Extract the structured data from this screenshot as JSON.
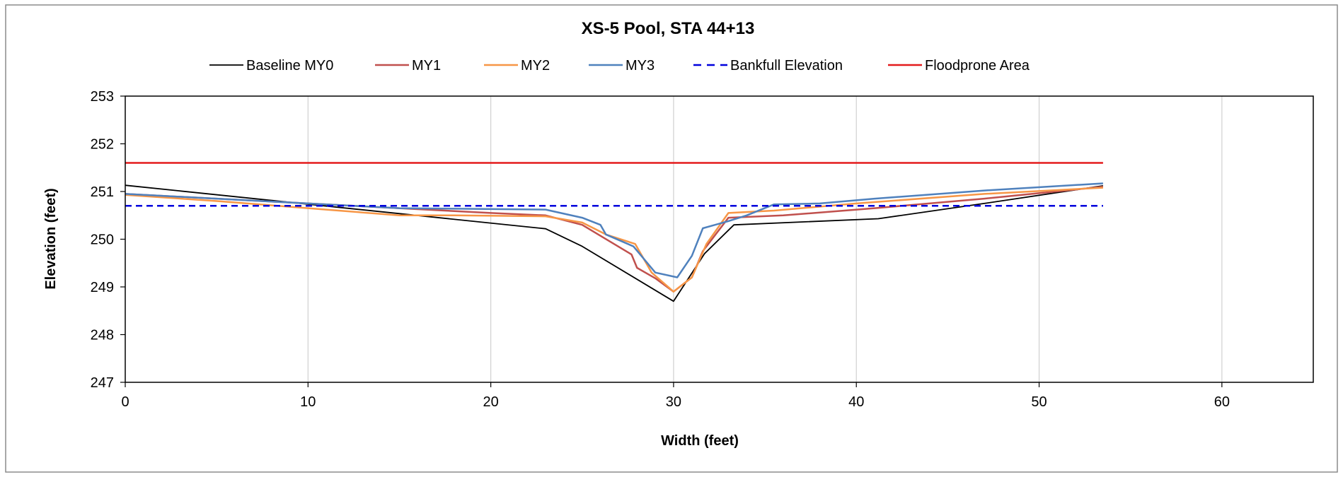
{
  "chart_data": {
    "type": "line",
    "title": "XS-5 Pool, STA 44+13",
    "xlabel": "Width (feet)",
    "ylabel": "Elevation (feet)",
    "xlim": [
      0,
      65
    ],
    "ylim": [
      247,
      253
    ],
    "xticks": [
      0,
      10,
      20,
      30,
      40,
      50,
      60
    ],
    "yticks": [
      247,
      248,
      249,
      250,
      251,
      252,
      253
    ],
    "grid": "vertical",
    "legend_position": "top",
    "series": [
      {
        "name": "Baseline MY0",
        "color": "#000000",
        "style": "solid",
        "x": [
          0,
          23,
          25,
          30,
          31.7,
          33.3,
          41.2,
          47,
          53.5
        ],
        "y": [
          251.13,
          250.22,
          249.85,
          248.7,
          249.7,
          250.3,
          250.43,
          250.75,
          251.12
        ]
      },
      {
        "name": "MY1",
        "color": "#C0504D",
        "style": "solid",
        "x": [
          0,
          10,
          20,
          23,
          25,
          27.7,
          28,
          29,
          30,
          31,
          31.6,
          33,
          36,
          41,
          47,
          53.5
        ],
        "y": [
          250.95,
          250.75,
          250.55,
          250.5,
          250.3,
          249.68,
          249.4,
          249.18,
          248.9,
          249.2,
          249.75,
          250.45,
          250.5,
          250.65,
          250.85,
          251.1
        ]
      },
      {
        "name": "MY2",
        "color": "#F79646",
        "style": "solid",
        "x": [
          0,
          5,
          10,
          15,
          18,
          23,
          25,
          26.3,
          27.9,
          28.8,
          30,
          31,
          31.8,
          33,
          35.5,
          40,
          47,
          53.5
        ],
        "y": [
          250.93,
          250.8,
          250.65,
          250.5,
          250.5,
          250.48,
          250.35,
          250.1,
          249.9,
          249.3,
          248.9,
          249.2,
          249.9,
          250.55,
          250.6,
          250.75,
          250.95,
          251.08
        ]
      },
      {
        "name": "MY3",
        "color": "#4F81BD",
        "style": "solid",
        "x": [
          0,
          10,
          15,
          23,
          25,
          26,
          26.3,
          27.8,
          29,
          30.2,
          31,
          31.6,
          33,
          34,
          35.5,
          38,
          41,
          47,
          53.5
        ],
        "y": [
          250.95,
          250.75,
          250.65,
          250.62,
          250.45,
          250.3,
          250.1,
          249.85,
          249.3,
          249.2,
          249.65,
          250.23,
          250.38,
          250.5,
          250.73,
          250.75,
          250.85,
          251.02,
          251.17
        ]
      },
      {
        "name": "Bankfull Elevation",
        "color": "#0000DD",
        "style": "dashed",
        "x": [
          0,
          53.5
        ],
        "y": [
          250.7,
          250.7
        ]
      },
      {
        "name": "Floodprone Area",
        "color": "#E31A1C",
        "style": "solid",
        "x": [
          0,
          53.5
        ],
        "y": [
          251.6,
          251.6
        ]
      }
    ]
  }
}
